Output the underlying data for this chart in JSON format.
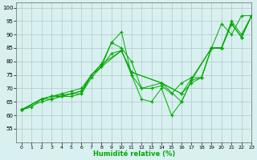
{
  "xlabel": "Humidité relative (%)",
  "bg_color": "#d8f0f0",
  "grid_color": "#b0c8c8",
  "line_color": "#00aa00",
  "xlim": [
    -0.5,
    23
  ],
  "ylim": [
    50,
    102
  ],
  "xticks": [
    0,
    1,
    2,
    3,
    4,
    5,
    6,
    7,
    8,
    9,
    10,
    11,
    12,
    13,
    14,
    15,
    16,
    17,
    18,
    19,
    20,
    21,
    22,
    23
  ],
  "yticks": [
    55,
    60,
    65,
    70,
    75,
    80,
    85,
    90,
    95,
    100
  ],
  "lines": [
    {
      "x": [
        0,
        1,
        2,
        3,
        4,
        5,
        6,
        7,
        8,
        9,
        10,
        11,
        12,
        13,
        14,
        15,
        16,
        17,
        18,
        19,
        20,
        21,
        22,
        23
      ],
      "y": [
        62,
        63,
        66,
        66,
        67,
        68,
        69,
        75,
        79,
        87,
        91,
        75,
        66,
        65,
        70,
        60,
        65,
        73,
        74,
        85,
        94,
        90,
        97,
        97
      ]
    },
    {
      "x": [
        0,
        2,
        3,
        4,
        5,
        6,
        7,
        8,
        9,
        10,
        11,
        12,
        14,
        16,
        17,
        18,
        19,
        20,
        21,
        22,
        23
      ],
      "y": [
        62,
        66,
        67,
        68,
        69,
        70,
        75,
        78,
        83,
        84,
        75,
        70,
        72,
        68,
        72,
        74,
        85,
        85,
        94,
        89,
        97
      ]
    },
    {
      "x": [
        0,
        2,
        3,
        4,
        5,
        6,
        7,
        8,
        10,
        11,
        14,
        16,
        17,
        19,
        20,
        21,
        22,
        23
      ],
      "y": [
        62,
        66,
        67,
        67,
        68,
        68,
        75,
        79,
        84,
        76,
        72,
        65,
        73,
        85,
        85,
        94,
        89,
        97
      ]
    },
    {
      "x": [
        0,
        2,
        3,
        5,
        6,
        7,
        10,
        11,
        14,
        16,
        19,
        20,
        21,
        22,
        23
      ],
      "y": [
        62,
        66,
        67,
        68,
        69,
        75,
        84,
        76,
        72,
        68,
        85,
        85,
        94,
        89,
        97
      ]
    },
    {
      "x": [
        0,
        2,
        3,
        4,
        5,
        6,
        7,
        8,
        9,
        10,
        11,
        12,
        13,
        14,
        15,
        16,
        17,
        18,
        19,
        20,
        21,
        22,
        23
      ],
      "y": [
        62,
        65,
        66,
        67,
        67,
        68,
        74,
        78,
        87,
        85,
        80,
        70,
        70,
        71,
        68,
        72,
        74,
        74,
        85,
        85,
        95,
        90,
        97
      ]
    }
  ]
}
